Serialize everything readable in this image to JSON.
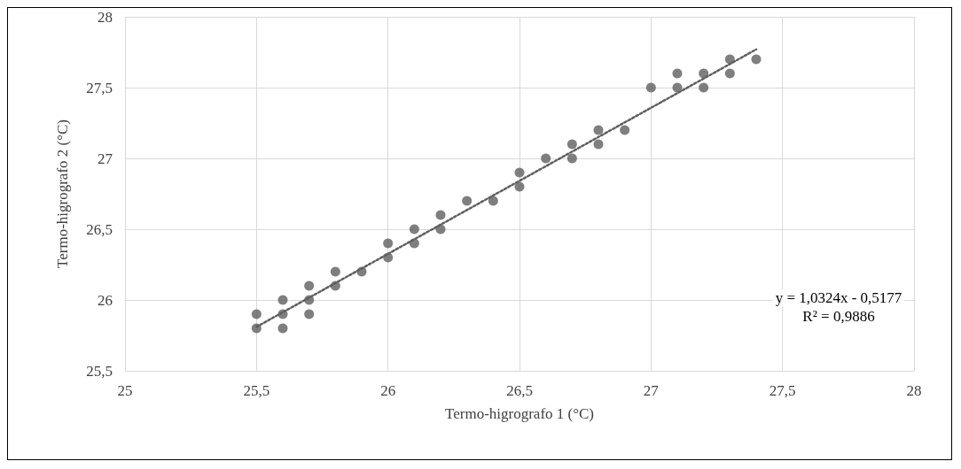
{
  "chart_data": {
    "type": "scatter",
    "xlabel": "Termo-higrografo 1 (°C)",
    "ylabel": "Termo-higrografo 2 (°C)",
    "xlim": [
      25,
      28
    ],
    "xticks": [
      25,
      {
        "value": 25.5,
        "label": "25,5"
      },
      26,
      {
        "value": 26.5,
        "label": "26,5"
      },
      27,
      {
        "value": 27.5,
        "label": "27,5"
      },
      28
    ],
    "ylim": [
      25.5,
      28
    ],
    "yticks": [
      {
        "value": 25.5,
        "label": "25,5"
      },
      26,
      {
        "value": 26.5,
        "label": "26,5"
      },
      27,
      {
        "value": 27.5,
        "label": "27,5"
      },
      28
    ],
    "grid": true,
    "marker": "circle",
    "annotations": [
      "y = 1,0324x - 0,5177",
      "R² = 0,9886"
    ],
    "series": [
      {
        "color": "#5f5f5f",
        "x": [
          25.5,
          25.5,
          25.6,
          25.6,
          25.6,
          25.7,
          25.7,
          25.7,
          25.8,
          25.8,
          25.9,
          26.0,
          26.0,
          26.1,
          26.1,
          26.2,
          26.2,
          26.3,
          26.4,
          26.5,
          26.5,
          26.6,
          26.7,
          26.7,
          26.8,
          26.8,
          26.9,
          27.0,
          27.1,
          27.1,
          27.2,
          27.2,
          27.3,
          27.3,
          27.4
        ],
        "values": [
          25.9,
          25.8,
          26.0,
          25.9,
          25.8,
          26.1,
          26.0,
          25.9,
          26.2,
          26.1,
          26.2,
          26.4,
          26.3,
          26.5,
          26.4,
          26.6,
          26.5,
          26.7,
          26.7,
          26.9,
          26.8,
          27.0,
          27.1,
          27.0,
          27.2,
          27.1,
          27.2,
          27.5,
          27.6,
          27.5,
          27.6,
          27.5,
          27.7,
          27.6,
          27.7
        ]
      },
      {
        "type": "line",
        "color": "#5f5f5f",
        "line_style": "dotted",
        "marker": "none",
        "x": [
          25.5,
          27.4
        ],
        "values": [
          25.81,
          27.77
        ]
      }
    ]
  }
}
